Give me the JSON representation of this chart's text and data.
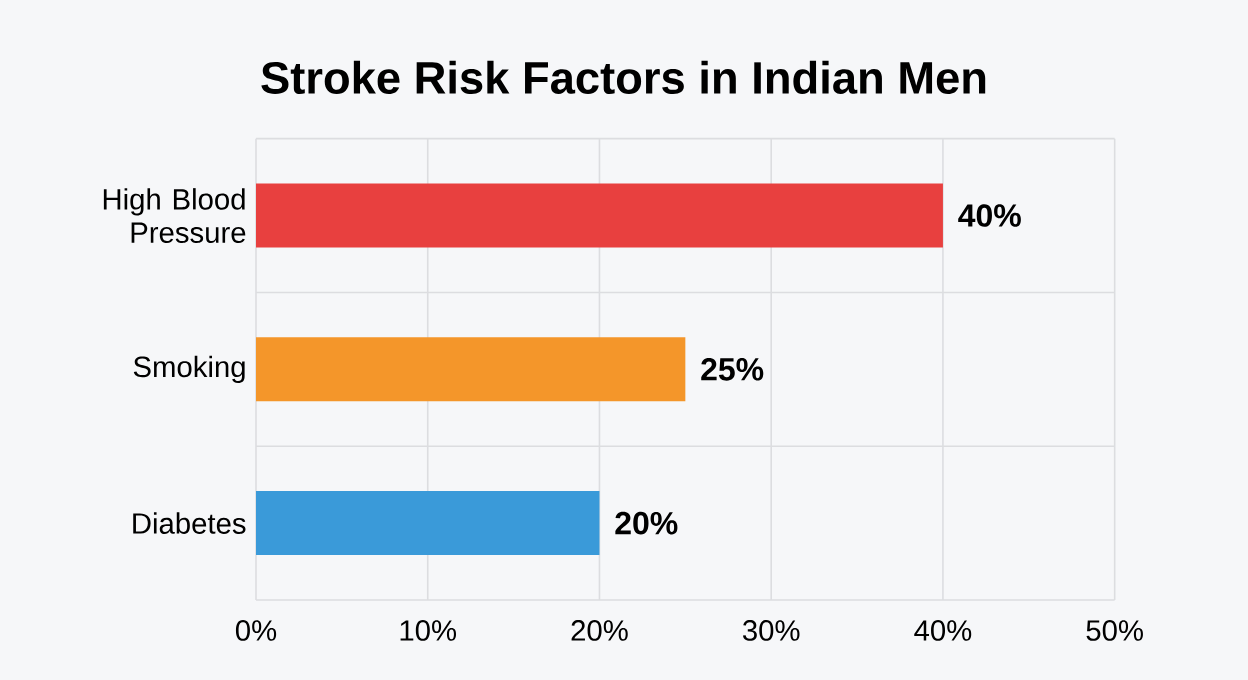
{
  "chart_data": {
    "type": "bar",
    "orientation": "horizontal",
    "title": "Stroke Risk Factors in Indian Men",
    "categories": [
      "High Blood Pressure",
      "Smoking",
      "Diabetes"
    ],
    "values": [
      40,
      25,
      20
    ],
    "colors": [
      "#e8403f",
      "#f4962a",
      "#3a9ad9"
    ],
    "value_labels": [
      "40%",
      "25%",
      "20%"
    ],
    "xlim": [
      0,
      50
    ],
    "xticks": [
      {
        "value": 0,
        "label": "0%"
      },
      {
        "value": 10,
        "label": "10%"
      },
      {
        "value": 20,
        "label": "20%"
      },
      {
        "value": 30,
        "label": "30%"
      },
      {
        "value": 40,
        "label": "40%"
      },
      {
        "value": 50,
        "label": "50%"
      }
    ],
    "grid": true
  }
}
